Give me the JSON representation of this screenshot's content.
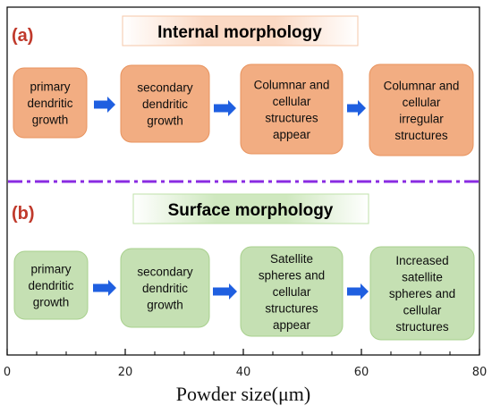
{
  "panels": [
    {
      "label": "(a)",
      "title": "Internal morphology",
      "colors": {
        "fill": "#f2ad82",
        "stroke": "#e8935e",
        "title_bg": "#fde6d9",
        "label": "#c0392b"
      },
      "stages": [
        {
          "lines": [
            "primary",
            "dendritic",
            "growth"
          ]
        },
        {
          "lines": [
            "secondary",
            "dendritic",
            "growth"
          ]
        },
        {
          "lines": [
            "Columnar and",
            "cellular",
            "structures",
            "appear"
          ]
        },
        {
          "lines": [
            "Columnar and",
            "cellular",
            "irregular",
            "structures"
          ]
        }
      ]
    },
    {
      "label": "(b)",
      "title": "Surface morphology",
      "colors": {
        "fill": "#c5e0b3",
        "stroke": "#a8d08d",
        "title_bg": "#e2f0d9",
        "label": "#c0392b"
      },
      "stages": [
        {
          "lines": [
            "primary",
            "dendritic",
            "growth"
          ]
        },
        {
          "lines": [
            "secondary",
            "dendritic",
            "growth"
          ]
        },
        {
          "lines": [
            "Satellite",
            "spheres and",
            "cellular",
            "structures",
            "appear"
          ]
        },
        {
          "lines": [
            "Increased",
            "satellite",
            "spheres and",
            "cellular",
            "structures"
          ]
        }
      ]
    }
  ],
  "arrow_color": "#1f5fe0",
  "divider_color": "#8a2be2",
  "axis": {
    "title": "Powder size(μm)",
    "ticks": [
      "0",
      "20",
      "40",
      "60",
      "80"
    ],
    "min": 0,
    "max": 80
  }
}
